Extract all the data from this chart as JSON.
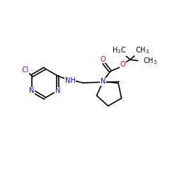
{
  "bg_color": "#ffffff",
  "atom_colors": {
    "C": "#000000",
    "N": "#0000ff",
    "O": "#ff0000",
    "Cl": "#9900cc",
    "H": "#000000"
  },
  "font_size": 7,
  "line_width": 1.2,
  "figsize": [
    2.5,
    2.5
  ],
  "dpi": 100
}
